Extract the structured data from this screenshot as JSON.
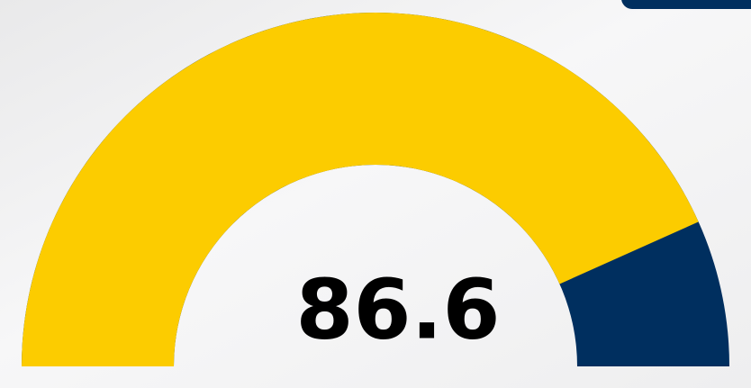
{
  "chart_data": {
    "type": "gauge",
    "value": 86.6,
    "ylim": [
      0,
      100
    ],
    "color": "#fccc00",
    "track_color": "#002f5f"
  }
}
